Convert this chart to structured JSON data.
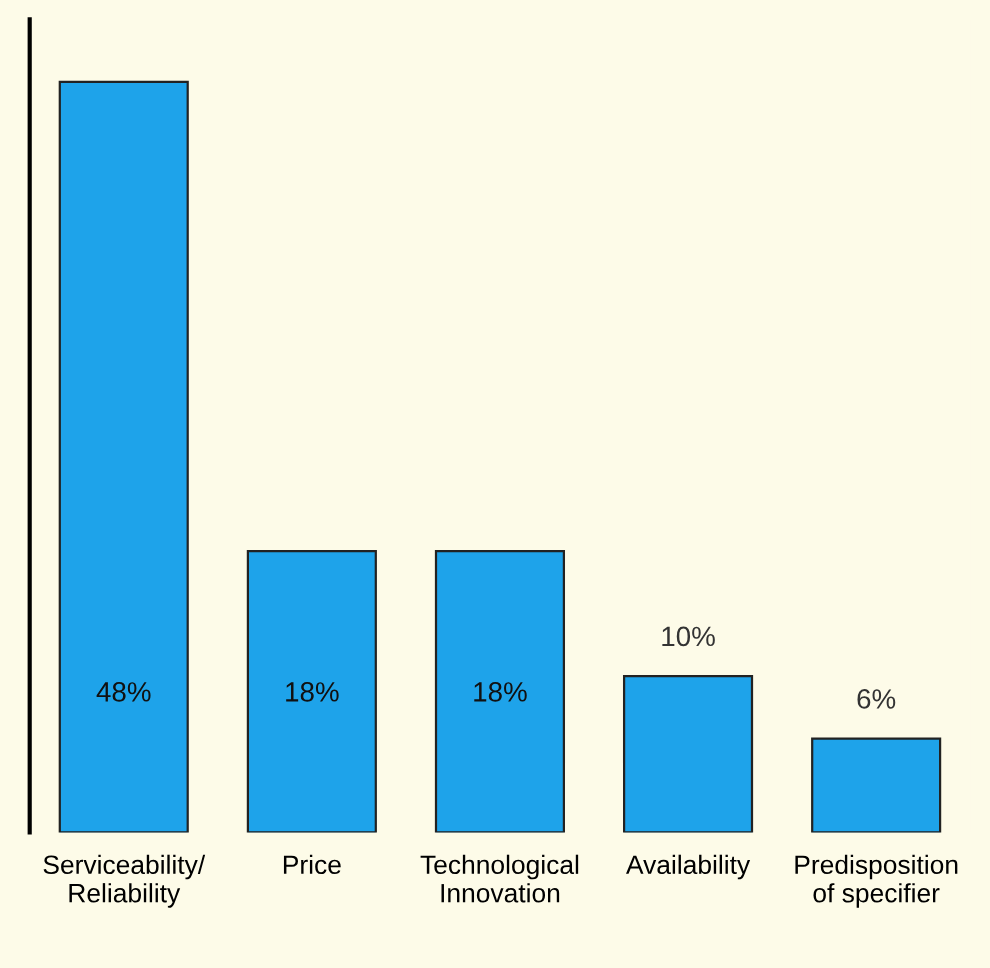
{
  "chart_data": {
    "type": "bar",
    "categories": [
      "Serviceability/\nReliability",
      "Price",
      "Technological\nInnovation",
      "Availability",
      "Predisposition\nof specifier"
    ],
    "values": [
      48,
      18,
      18,
      10,
      6
    ],
    "value_labels": [
      "48%",
      "18%",
      "18%",
      "10%",
      "6%"
    ],
    "color": "#1ea3ea",
    "ylim": [
      0,
      52
    ],
    "tick_labels": "x",
    "grid": false,
    "legend": false
  }
}
